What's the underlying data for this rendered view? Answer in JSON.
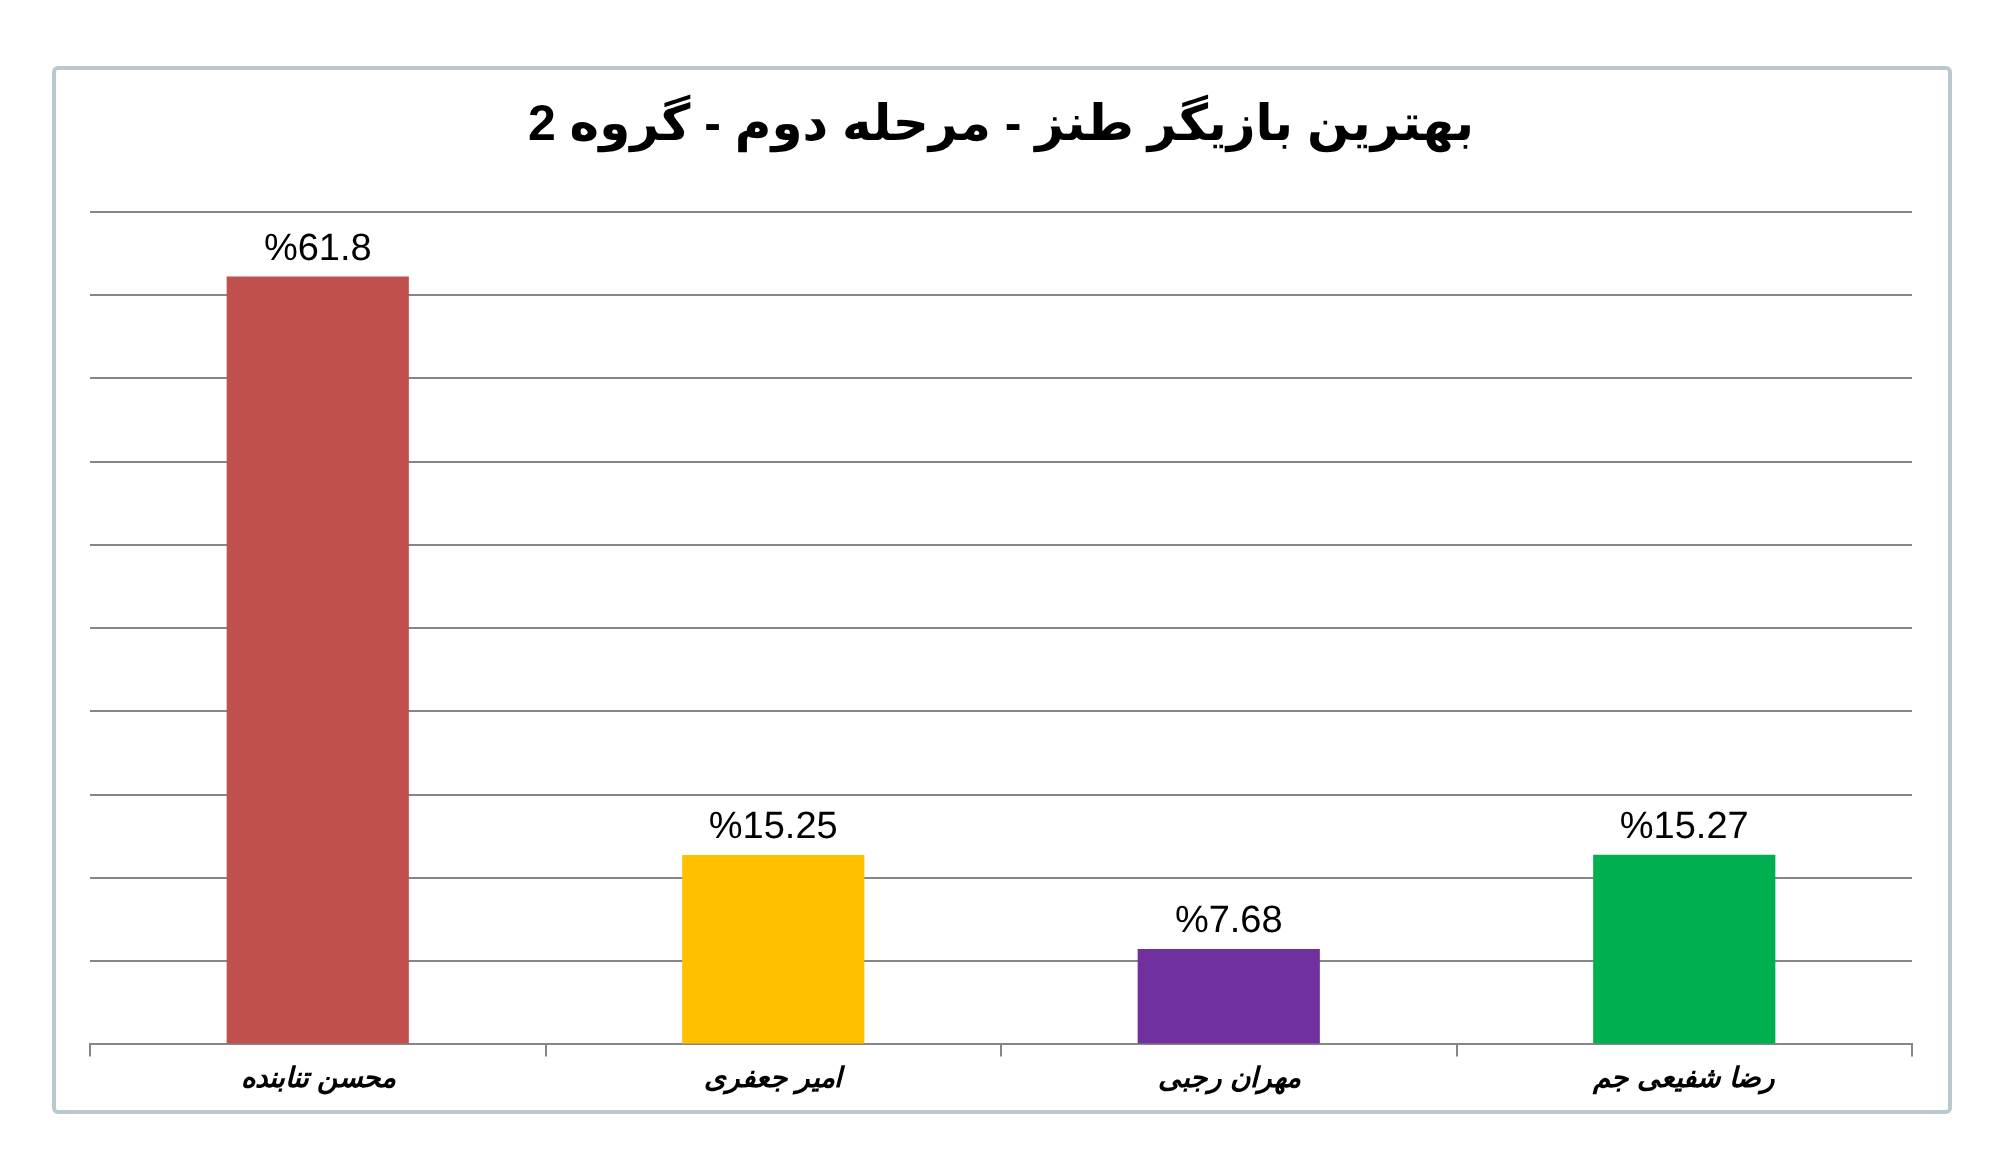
{
  "chart_data": {
    "type": "bar",
    "title": "بهترین بازیگر طنز - مرحله دوم - گروه 2",
    "categories": [
      "محسن تنابنده",
      "امیر جعفری",
      "مهران رجبی",
      "رضا شفیعی جم"
    ],
    "values": [
      61.8,
      15.25,
      7.68,
      15.27
    ],
    "colors": [
      "#c0504d",
      "#ffc000",
      "#7030a0",
      "#00b050"
    ],
    "value_labels": [
      "%61.8",
      "%15.25",
      "%7.68",
      "%15.27"
    ],
    "ylim": [
      0,
      67
    ],
    "yticks": [
      {
        "value": 0,
        "label": null
      },
      {
        "value": 6.7,
        "label": null
      },
      {
        "value": 13.4,
        "label": null
      },
      {
        "value": 20.1,
        "label": null
      },
      {
        "value": 26.8,
        "label": null
      },
      {
        "value": 33.5,
        "label": null
      },
      {
        "value": 40.2,
        "label": null
      },
      {
        "value": 46.9,
        "label": null
      },
      {
        "value": 53.6,
        "label": null
      },
      {
        "value": 60.3,
        "label": null
      },
      {
        "value": 67,
        "label": null
      }
    ],
    "tick_labels": "x",
    "grid": "y",
    "legend": false
  }
}
